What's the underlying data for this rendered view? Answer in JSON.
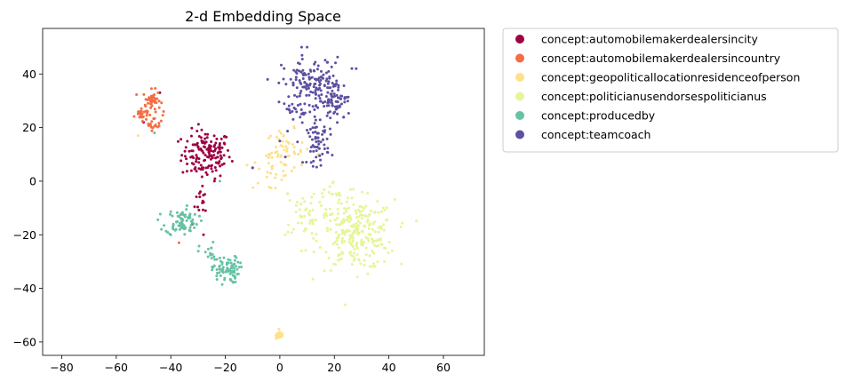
{
  "chart_data": {
    "type": "scatter",
    "title": "2-d Embedding Space",
    "xlabel": "",
    "ylabel": "",
    "xlim": [
      -87,
      75
    ],
    "ylim": [
      -65,
      57
    ],
    "xticks": [
      -80,
      -60,
      -40,
      -20,
      0,
      20,
      40,
      60
    ],
    "yticks": [
      -60,
      -40,
      -20,
      0,
      20,
      40
    ],
    "grid": false,
    "legend_position": "outside-right-top",
    "series": [
      {
        "name": "concept:automobilemakerdealersincity",
        "color": "#9e0142",
        "clusters": [
          {
            "cx": -27,
            "cy": 10,
            "sx": 4.5,
            "sy": 4.5,
            "n": 150
          },
          {
            "cx": -28,
            "cy": -7,
            "sx": 1.5,
            "sy": 3.0,
            "n": 14
          }
        ],
        "points": [
          [
            -44,
            33
          ],
          [
            -10,
            5
          ],
          [
            -50,
            22
          ],
          [
            -28,
            -20
          ],
          [
            -32,
            -16
          ],
          [
            -24,
            0
          ]
        ]
      },
      {
        "name": "concept:automobilemakerdealersincountry",
        "color": "#f46d43",
        "clusters": [
          {
            "cx": -47,
            "cy": 30,
            "sx": 1.6,
            "sy": 2.0,
            "n": 45
          },
          {
            "cx": -51,
            "cy": 25,
            "sx": 1.2,
            "sy": 1.2,
            "n": 25
          },
          {
            "cx": -46,
            "cy": 22,
            "sx": 1.5,
            "sy": 1.5,
            "n": 20
          }
        ],
        "points": [
          [
            -37,
            -23
          ]
        ]
      },
      {
        "name": "concept:geopoliticallocationresidenceofperson",
        "color": "#fee08b",
        "clusters": [
          {
            "cx": 2,
            "cy": 11,
            "sx": 3.5,
            "sy": 4.0,
            "n": 50
          },
          {
            "cx": -5,
            "cy": 3,
            "sx": 3.5,
            "sy": 3.0,
            "n": 20
          },
          {
            "cx": 0,
            "cy": -57.5,
            "sx": 0.7,
            "sy": 0.7,
            "n": 45
          }
        ],
        "points": [
          [
            -52,
            17
          ],
          [
            10,
            12
          ],
          [
            8,
            6
          ],
          [
            -12,
            6
          ],
          [
            14,
            10
          ]
        ]
      },
      {
        "name": "concept:politicianusendorsespoliticianus",
        "color": "#e6f598",
        "clusters": [
          {
            "cx": 28,
            "cy": -20,
            "sx": 7.0,
            "sy": 6.5,
            "n": 250
          },
          {
            "cx": 10,
            "cy": -12,
            "sx": 4.0,
            "sy": 4.5,
            "n": 40
          },
          {
            "cx": 20,
            "cy": -5,
            "sx": 4.0,
            "sy": 2.5,
            "n": 20
          }
        ],
        "points": [
          [
            3,
            -19
          ],
          [
            2,
            -20
          ],
          [
            27,
            -3
          ],
          [
            8,
            -26
          ]
        ]
      },
      {
        "name": "concept:producedby",
        "color": "#66c2a5",
        "clusters": [
          {
            "cx": -36,
            "cy": -15,
            "sx": 3.0,
            "sy": 2.5,
            "n": 80
          },
          {
            "cx": -20,
            "cy": -33,
            "sx": 2.5,
            "sy": 2.5,
            "n": 80
          },
          {
            "cx": -26,
            "cy": -27,
            "sx": 1.8,
            "sy": 2.0,
            "n": 15
          }
        ],
        "points": [
          [
            -46,
            18
          ],
          [
            -22,
            0
          ],
          [
            -40,
            -20
          ]
        ]
      },
      {
        "name": "concept:teamcoach",
        "color": "#5e4fa2",
        "clusters": [
          {
            "cx": 12,
            "cy": 36,
            "sx": 5.5,
            "sy": 5.0,
            "n": 140
          },
          {
            "cx": 20,
            "cy": 30,
            "sx": 3.0,
            "sy": 4.0,
            "n": 70
          },
          {
            "cx": 14,
            "cy": 14,
            "sx": 2.0,
            "sy": 4.0,
            "n": 60
          },
          {
            "cx": 6,
            "cy": 26,
            "sx": 2.5,
            "sy": 2.5,
            "n": 20
          }
        ],
        "points": [
          [
            8,
            50
          ],
          [
            10,
            50
          ],
          [
            -10,
            5
          ],
          [
            2,
            9
          ],
          [
            0,
            15
          ],
          [
            28,
            42
          ]
        ]
      }
    ]
  }
}
